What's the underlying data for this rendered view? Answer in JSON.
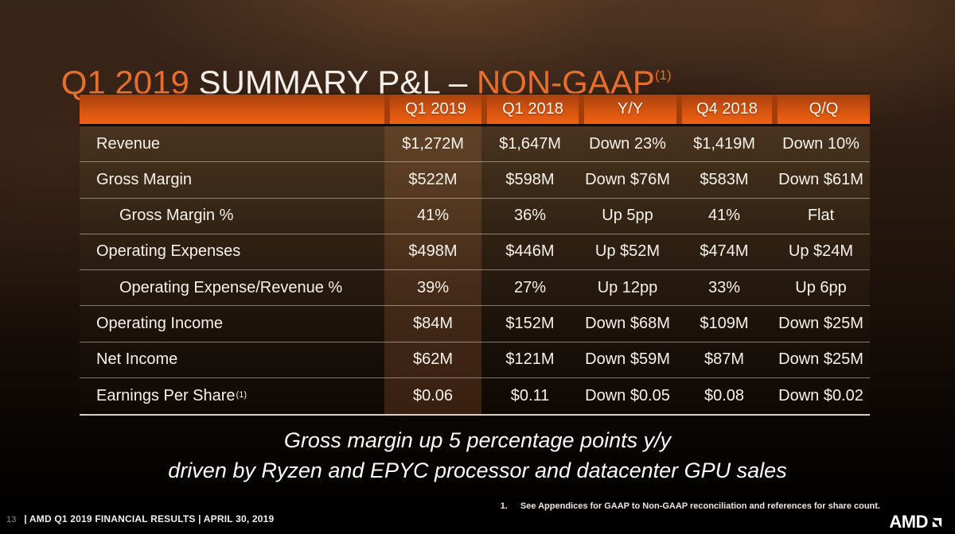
{
  "title": {
    "quarter": "Q1 2019 ",
    "main": "SUMMARY P&L – ",
    "emphasis": "NON-GAAP",
    "superscript": "(1)"
  },
  "table": {
    "columns": [
      "",
      "Q1 2019",
      "Q1 2018",
      "Y/Y",
      "Q4 2018",
      "Q/Q"
    ],
    "rows": [
      {
        "label": "Revenue",
        "indent": false,
        "sup": "",
        "values": [
          "$1,272M",
          "$1,647M",
          "Down 23%",
          "$1,419M",
          "Down 10%"
        ]
      },
      {
        "label": "Gross Margin",
        "indent": false,
        "sup": "",
        "values": [
          "$522M",
          "$598M",
          "Down $76M",
          "$583M",
          "Down $61M"
        ]
      },
      {
        "label": "Gross Margin %",
        "indent": true,
        "sup": "",
        "values": [
          "41%",
          "36%",
          "Up 5pp",
          "41%",
          "Flat"
        ]
      },
      {
        "label": "Operating Expenses",
        "indent": false,
        "sup": "",
        "values": [
          "$498M",
          "$446M",
          "Up $52M",
          "$474M",
          "Up $24M"
        ]
      },
      {
        "label": "Operating Expense/Revenue %",
        "indent": true,
        "sup": "",
        "values": [
          "39%",
          "27%",
          "Up 12pp",
          "33%",
          "Up 6pp"
        ]
      },
      {
        "label": "Operating Income",
        "indent": false,
        "sup": "",
        "values": [
          "$84M",
          "$152M",
          "Down $68M",
          "$109M",
          "Down $25M"
        ]
      },
      {
        "label": "Net Income",
        "indent": false,
        "sup": "",
        "values": [
          "$62M",
          "$121M",
          "Down $59M",
          "$87M",
          "Down $25M"
        ]
      },
      {
        "label": "Earnings Per Share",
        "indent": false,
        "sup": "(1)",
        "values": [
          "$0.06",
          "$0.11",
          "Down $0.05",
          "$0.08",
          "Down $0.02"
        ]
      }
    ]
  },
  "callout": {
    "line1": "Gross margin up 5 percentage points y/y",
    "line2": "driven by Ryzen and EPYC processor and datacenter GPU sales"
  },
  "footnote": {
    "number": "1.",
    "text": "See Appendices for GAAP to Non-GAAP reconciliation and references for share count."
  },
  "footer": {
    "page_number": "13",
    "text": "| AMD Q1 2019 FINANCIAL RESULTS | APRIL 30, 2019",
    "logo": "AMD"
  },
  "colors": {
    "header_orange": "#e05a10",
    "title_orange": "#e76f2e",
    "highlight_column": "#54351e",
    "table_text": "#f6f2ec",
    "background_brown": "#2b1b11"
  }
}
